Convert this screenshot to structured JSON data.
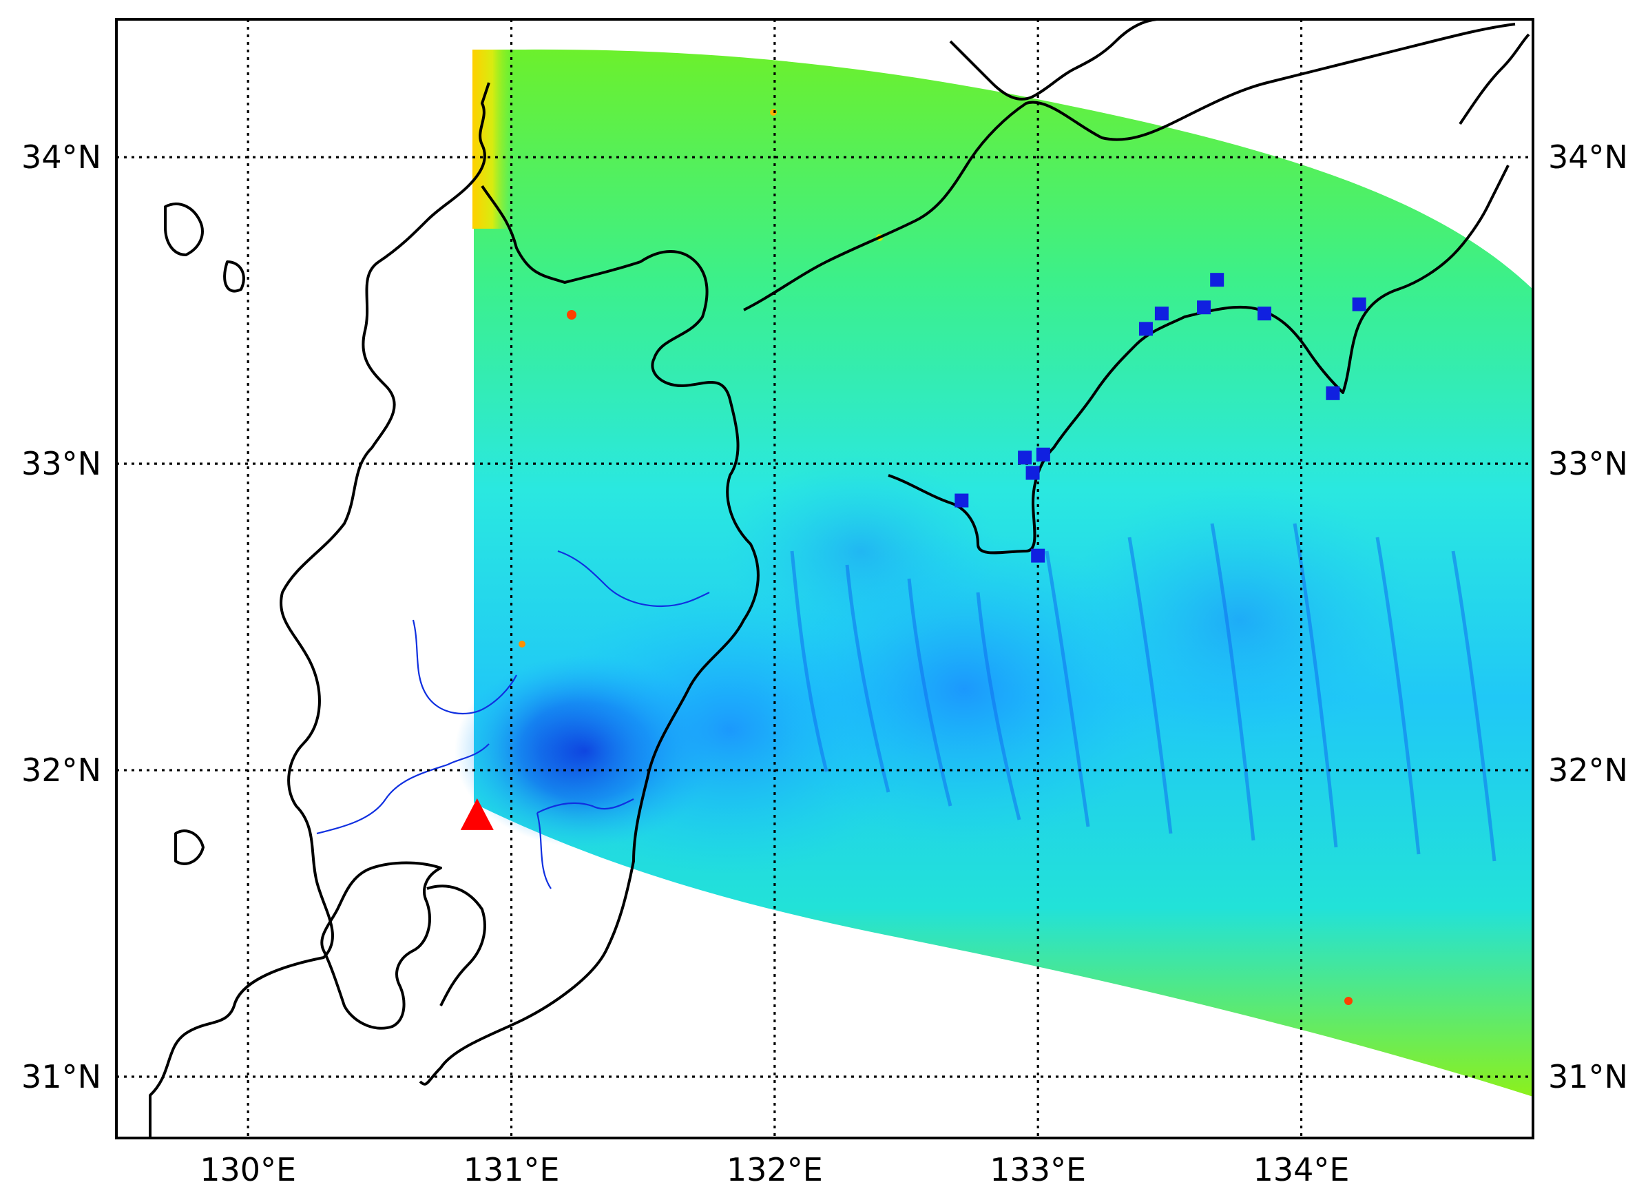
{
  "map": {
    "longitude_labels": [
      "130°E",
      "131°E",
      "132°E",
      "133°E",
      "134°E"
    ],
    "latitude_labels": [
      "34°N",
      "33°N",
      "32°N",
      "31°N"
    ],
    "extent": {
      "lon_min": 129.5,
      "lon_max": 134.88,
      "lat_min": 30.8,
      "lat_max": 34.45
    },
    "colors": {
      "field_low": "#0a1fd8",
      "field_mid_low": "#1a9cff",
      "field_mid": "#34f0c8",
      "field_high": "#7cf020",
      "field_peak": "#ffe000",
      "source_marker": "#ff0000",
      "station_marker": "#1020e0",
      "river": "#1030e0",
      "coastline": "#000000"
    },
    "source": {
      "lon": 130.87,
      "lat": 31.85,
      "shape": "triangle"
    },
    "stations": [
      {
        "lon": 132.71,
        "lat": 32.88
      },
      {
        "lon": 132.95,
        "lat": 33.02
      },
      {
        "lon": 133.02,
        "lat": 33.03
      },
      {
        "lon": 132.98,
        "lat": 32.97
      },
      {
        "lon": 133.0,
        "lat": 32.7
      },
      {
        "lon": 133.41,
        "lat": 33.44
      },
      {
        "lon": 133.47,
        "lat": 33.49
      },
      {
        "lon": 133.63,
        "lat": 33.51
      },
      {
        "lon": 133.68,
        "lat": 33.6
      },
      {
        "lon": 133.86,
        "lat": 33.49
      },
      {
        "lon": 134.12,
        "lat": 33.23
      },
      {
        "lon": 134.22,
        "lat": 33.52
      }
    ]
  }
}
